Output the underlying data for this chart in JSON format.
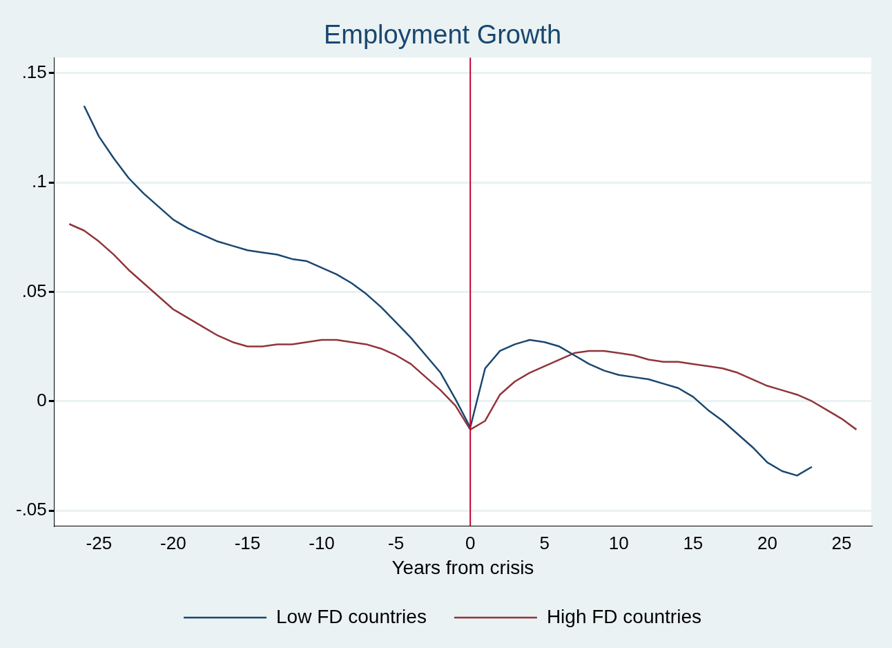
{
  "chart_data": {
    "type": "line",
    "title": "Employment Growth",
    "xlabel": "Years from crisis",
    "xlim": [
      -28,
      27
    ],
    "xticks": [
      -25,
      -20,
      -15,
      -10,
      -5,
      0,
      5,
      10,
      15,
      20,
      25
    ],
    "ylim": [
      -0.057,
      0.157
    ],
    "yticks": [
      {
        "value": -0.05,
        "label": "-.05"
      },
      0,
      {
        "value": 0.05,
        "label": ".05"
      },
      {
        "value": 0.1,
        "label": ".1"
      },
      {
        "value": 0.15,
        "label": ".15"
      }
    ],
    "grid": "y",
    "legend": "bottom",
    "marker": "none",
    "line_style": "solid",
    "ref_lines": [
      {
        "axis": "x",
        "value": 0,
        "label": null,
        "color": "#c10534"
      }
    ],
    "series": [
      {
        "name": "Low FD countries",
        "color": "#1a476f",
        "x": [
          -26,
          -25,
          -24,
          -23,
          -22,
          -21,
          -20,
          -19,
          -18,
          -17,
          -16,
          -15,
          -14,
          -13,
          -12,
          -11,
          -10,
          -9,
          -8,
          -7,
          -6,
          -5,
          -4,
          -3,
          -2,
          -1,
          0,
          1,
          2,
          3,
          4,
          5,
          6,
          7,
          8,
          9,
          10,
          11,
          12,
          13,
          14,
          15,
          16,
          17,
          18,
          19,
          20,
          21,
          22,
          23
        ],
        "values": [
          0.135,
          0.121,
          0.111,
          0.102,
          0.095,
          0.089,
          0.083,
          0.079,
          0.076,
          0.073,
          0.071,
          0.069,
          0.068,
          0.067,
          0.065,
          0.064,
          0.061,
          0.058,
          0.054,
          0.049,
          0.043,
          0.036,
          0.029,
          0.021,
          0.013,
          0.001,
          -0.012,
          0.015,
          0.023,
          0.026,
          0.028,
          0.027,
          0.025,
          0.021,
          0.017,
          0.014,
          0.012,
          0.011,
          0.01,
          0.008,
          0.006,
          0.002,
          -0.004,
          -0.009,
          -0.015,
          -0.021,
          -0.028,
          -0.032,
          -0.034,
          -0.03
        ]
      },
      {
        "name": "High FD countries",
        "color": "#90353b",
        "x": [
          -27,
          -26,
          -25,
          -24,
          -23,
          -22,
          -21,
          -20,
          -19,
          -18,
          -17,
          -16,
          -15,
          -14,
          -13,
          -12,
          -11,
          -10,
          -9,
          -8,
          -7,
          -6,
          -5,
          -4,
          -3,
          -2,
          -1,
          0,
          1,
          2,
          3,
          4,
          5,
          6,
          7,
          8,
          9,
          10,
          11,
          12,
          13,
          14,
          15,
          16,
          17,
          18,
          19,
          20,
          21,
          22,
          23,
          24,
          25,
          26
        ],
        "values": [
          0.081,
          0.078,
          0.073,
          0.067,
          0.06,
          0.054,
          0.048,
          0.042,
          0.038,
          0.034,
          0.03,
          0.027,
          0.025,
          0.025,
          0.026,
          0.026,
          0.027,
          0.028,
          0.028,
          0.027,
          0.026,
          0.024,
          0.021,
          0.017,
          0.011,
          0.005,
          -0.002,
          -0.013,
          -0.009,
          0.003,
          0.009,
          0.013,
          0.016,
          0.019,
          0.022,
          0.023,
          0.023,
          0.022,
          0.021,
          0.019,
          0.018,
          0.018,
          0.017,
          0.016,
          0.015,
          0.013,
          0.01,
          0.007,
          0.005,
          0.003,
          0.0,
          -0.004,
          -0.008,
          -0.013
        ]
      }
    ]
  }
}
